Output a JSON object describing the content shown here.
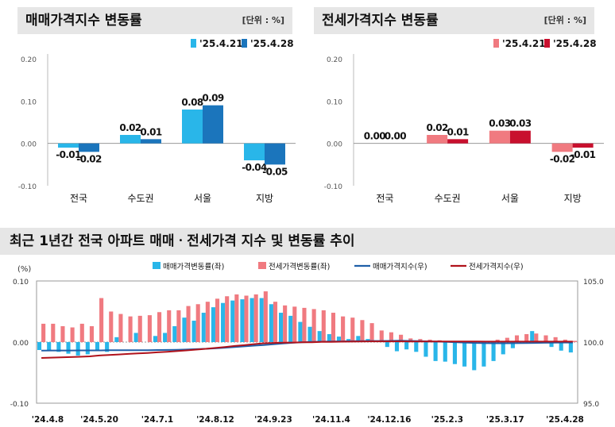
{
  "charts": {
    "sale": {
      "title": "매매가격지수 변동률",
      "unit": "[단위 : %]"
    },
    "jeonse": {
      "title": "전세가격지수 변동률",
      "unit": "[단위 : %]"
    },
    "trend": {
      "title": "최근 1년간 전국 아파트 매매ㆍ전세가격 지수 및 변동률 추이"
    }
  },
  "chart_data": [
    {
      "type": "bar",
      "title": "매매가격지수 변동률",
      "categories": [
        "전국",
        "수도권",
        "서울",
        "지방"
      ],
      "series": [
        {
          "name": "'25.4.21",
          "values": [
            -0.01,
            0.02,
            0.08,
            -0.04
          ],
          "labels": [
            "-0.01",
            "0.02",
            "0.08",
            "-0.04"
          ],
          "color": "#29b6e9"
        },
        {
          "name": "'25.4.28",
          "values": [
            -0.02,
            0.01,
            0.09,
            -0.05
          ],
          "labels": [
            "-0.02",
            "0.01",
            "0.09",
            "-0.05"
          ],
          "color": "#1b75bc"
        }
      ],
      "ylim": [
        -0.1,
        0.2
      ],
      "yticks": [
        "0.20",
        "0.10",
        "0.00",
        "-0.10"
      ],
      "ytick_values": [
        0.2,
        0.1,
        0.0,
        -0.1
      ],
      "legend": "top-right",
      "grid": false
    },
    {
      "type": "bar",
      "title": "전세가격지수 변동률",
      "categories": [
        "전국",
        "수도권",
        "서울",
        "지방"
      ],
      "series": [
        {
          "name": "'25.4.21",
          "values": [
            0.0,
            0.02,
            0.03,
            -0.02
          ],
          "labels": [
            "0.00",
            "0.02",
            "0.03",
            "-0.02"
          ],
          "color": "#f07a80"
        },
        {
          "name": "'25.4.28",
          "values": [
            0.0,
            0.01,
            0.03,
            -0.01
          ],
          "labels": [
            "0.00",
            "0.01",
            "0.03",
            "-0.01"
          ],
          "color": "#c8102e"
        }
      ],
      "ylim": [
        -0.1,
        0.2
      ],
      "yticks": [
        "0.20",
        "0.10",
        "0.00",
        "-0.10"
      ],
      "ytick_values": [
        0.2,
        0.1,
        0.0,
        -0.1
      ],
      "legend": "top-right",
      "grid": false
    },
    {
      "type": "bar",
      "title": "최근 1년간 전국 아파트 매매ㆍ전세가격 지수 및 변동률 추이",
      "x_tick_labels": [
        "'24.4.8",
        "'24.5.20",
        "'24.7.1",
        "'24.8.12",
        "'24.9.23",
        "'24.11.4",
        "'24.12.16",
        "'25.2.3",
        "'25.3.17",
        "'25.4.28"
      ],
      "x_tick_weeks": [
        0,
        6,
        12,
        18,
        24,
        30,
        36,
        42,
        48,
        54
      ],
      "left_axis": {
        "label": "(%)",
        "ylim": [
          -0.1,
          0.1
        ],
        "ticks": [
          "0.10",
          "0.00",
          "-0.10"
        ],
        "tick_values": [
          0.1,
          0.0,
          -0.1
        ]
      },
      "right_axis": {
        "ylim": [
          95.0,
          105.0
        ],
        "ticks": [
          "105.0",
          "100.0",
          "95.0"
        ],
        "tick_values": [
          105.0,
          100.0,
          95.0
        ]
      },
      "legend": "top",
      "series": [
        {
          "name": "매매가격변동률(좌)",
          "kind": "bar",
          "color": "#29b6e9",
          "values": [
            -0.013,
            -0.014,
            -0.016,
            -0.019,
            -0.022,
            -0.02,
            -0.013,
            -0.016,
            0.008,
            0.0,
            0.015,
            0.0,
            0.01,
            0.015,
            0.026,
            0.04,
            0.035,
            0.048,
            0.057,
            0.064,
            0.068,
            0.07,
            0.072,
            0.072,
            0.062,
            0.048,
            0.043,
            0.033,
            0.025,
            0.018,
            0.013,
            0.009,
            0.005,
            0.01,
            0.005,
            0.0,
            -0.008,
            -0.015,
            -0.012,
            -0.016,
            -0.024,
            -0.031,
            -0.032,
            -0.036,
            -0.04,
            -0.046,
            -0.04,
            -0.031,
            -0.02,
            -0.01,
            0.0,
            0.018,
            0.0,
            -0.008,
            -0.014,
            -0.017
          ]
        },
        {
          "name": "전세가격변동률(좌)",
          "kind": "bar",
          "color": "#f07a80",
          "values": [
            0.03,
            0.03,
            0.026,
            0.024,
            0.03,
            0.026,
            0.072,
            0.05,
            0.046,
            0.042,
            0.043,
            0.044,
            0.049,
            0.052,
            0.052,
            0.059,
            0.062,
            0.066,
            0.071,
            0.075,
            0.078,
            0.076,
            0.078,
            0.083,
            0.066,
            0.06,
            0.058,
            0.056,
            0.054,
            0.052,
            0.048,
            0.042,
            0.04,
            0.036,
            0.031,
            0.019,
            0.016,
            0.012,
            0.006,
            0.005,
            0.004,
            0.003,
            0.001,
            0.0,
            0.0,
            0.0,
            0.0,
            0.004,
            0.007,
            0.011,
            0.013,
            0.014,
            0.011,
            0.008,
            0.004,
            0.002
          ]
        },
        {
          "name": "매매가격지수(우)",
          "kind": "line",
          "color": "#1f5fa8",
          "values": [
            99.3,
            99.31,
            99.31,
            99.31,
            99.32,
            99.32,
            99.32,
            99.33,
            99.33,
            99.34,
            99.34,
            99.34,
            99.35,
            99.36,
            99.37,
            99.39,
            99.42,
            99.45,
            99.49,
            99.54,
            99.59,
            99.65,
            99.71,
            99.76,
            99.82,
            99.88,
            99.94,
            99.98,
            100.01,
            100.03,
            100.05,
            100.06,
            100.07,
            100.08,
            100.09,
            100.09,
            100.1,
            100.11,
            100.1,
            100.08,
            100.06,
            100.04,
            100.01,
            99.98,
            99.95,
            99.93,
            99.91,
            99.9,
            99.9,
            99.91,
            99.92,
            99.93,
            99.94,
            99.95,
            99.96,
            99.96
          ]
        },
        {
          "name": "전세가격지수(우)",
          "kind": "line",
          "color": "#b0121b",
          "values": [
            98.7,
            98.73,
            98.75,
            98.77,
            98.8,
            98.83,
            98.9,
            98.95,
            98.99,
            99.03,
            99.07,
            99.11,
            99.16,
            99.21,
            99.26,
            99.32,
            99.38,
            99.45,
            99.52,
            99.6,
            99.68,
            99.75,
            99.83,
            99.9,
            99.93,
            99.95,
            99.96,
            99.98,
            99.99,
            100.01,
            100.02,
            100.03,
            100.04,
            100.05,
            100.06,
            100.06,
            100.06,
            100.06,
            100.05,
            100.05,
            100.05,
            100.05,
            100.05,
            100.05,
            100.05,
            100.05,
            100.04,
            100.04,
            100.04,
            100.04,
            100.04,
            100.04,
            100.04,
            100.04,
            100.04,
            100.04
          ]
        }
      ]
    }
  ]
}
